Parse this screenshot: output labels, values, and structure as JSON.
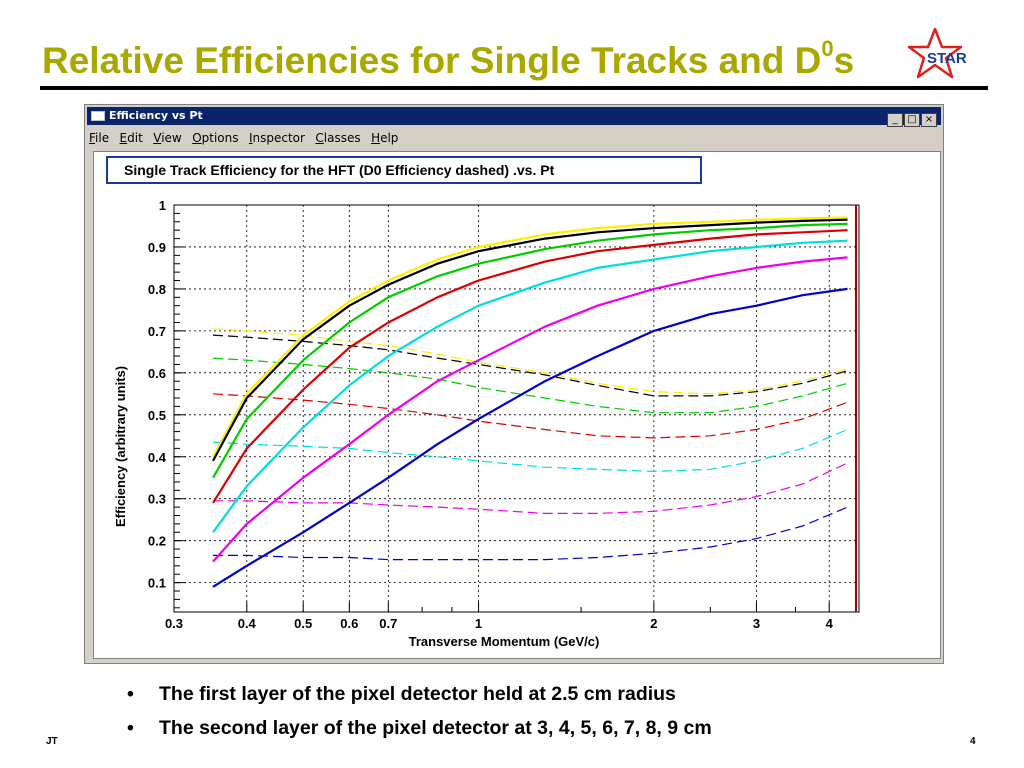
{
  "slide": {
    "title": "Relative Efficiencies for Single Tracks and D",
    "title_sup": "0",
    "title_suffix": "s",
    "logo_text": "STAR",
    "footer_left": "JT",
    "page_number": "4",
    "bullets": [
      "The first layer of the pixel detector held at 2.5 cm radius",
      "The second layer of the pixel detector at 3, 4, 5, 6, 7, 8, 9 cm"
    ],
    "colors": {
      "title": "#a8a800",
      "logo_star": "#e02020",
      "logo_text": "#1a3a9a"
    }
  },
  "window": {
    "title": "Efficiency vs Pt",
    "buttons": {
      "minimize": "_",
      "maximize": "□",
      "close": "×"
    },
    "menu": [
      "File",
      "Edit",
      "View",
      "Options",
      "Inspector",
      "Classes",
      "Help"
    ]
  },
  "chart_data": {
    "type": "line",
    "title": "Single Track Efficiency for the HFT (D0 Efficiency dashed) .vs. Pt",
    "xlabel": "Transverse Momentum (GeV/c)",
    "ylabel": "Efficiency (arbitrary units)",
    "x_scale": "log",
    "xlim": [
      0.3,
      4.5
    ],
    "ylim": [
      0.03,
      1.0
    ],
    "x_ticks": [
      0.3,
      0.4,
      0.5,
      0.6,
      0.7,
      1,
      2,
      3,
      4
    ],
    "x_tick_labels": [
      "0.3",
      "0.4",
      "0.5",
      "0.6",
      "0.7",
      "1",
      "2",
      "3",
      "4"
    ],
    "y_ticks": [
      0.1,
      0.2,
      0.3,
      0.4,
      0.5,
      0.6,
      0.7,
      0.8,
      0.9,
      1
    ],
    "y_tick_labels": [
      "0.1",
      "0.2",
      "0.3",
      "0.4",
      "0.5",
      "0.6",
      "0.7",
      "0.8",
      "0.9",
      "1"
    ],
    "grid": true,
    "x": [
      0.35,
      0.4,
      0.5,
      0.6,
      0.7,
      0.85,
      1.0,
      1.3,
      1.6,
      2.0,
      2.5,
      3.0,
      3.6,
      4.3
    ],
    "series": [
      {
        "color": "#ffee00",
        "style": "solid",
        "values": [
          0.4,
          0.55,
          0.69,
          0.77,
          0.82,
          0.87,
          0.9,
          0.93,
          0.945,
          0.955,
          0.96,
          0.965,
          0.968,
          0.97
        ]
      },
      {
        "color": "#000000",
        "style": "solid",
        "values": [
          0.39,
          0.54,
          0.68,
          0.76,
          0.81,
          0.86,
          0.89,
          0.92,
          0.935,
          0.945,
          0.952,
          0.958,
          0.962,
          0.965
        ]
      },
      {
        "color": "#00cc00",
        "style": "solid",
        "values": [
          0.35,
          0.49,
          0.63,
          0.72,
          0.78,
          0.83,
          0.86,
          0.895,
          0.915,
          0.93,
          0.94,
          0.945,
          0.952,
          0.955
        ]
      },
      {
        "color": "#dd0000",
        "style": "solid",
        "values": [
          0.29,
          0.42,
          0.56,
          0.66,
          0.72,
          0.78,
          0.82,
          0.865,
          0.89,
          0.905,
          0.92,
          0.93,
          0.935,
          0.94
        ]
      },
      {
        "color": "#00dddd",
        "style": "solid",
        "values": [
          0.22,
          0.33,
          0.47,
          0.57,
          0.64,
          0.71,
          0.76,
          0.815,
          0.85,
          0.87,
          0.89,
          0.9,
          0.91,
          0.915
        ]
      },
      {
        "color": "#ee00ee",
        "style": "solid",
        "values": [
          0.15,
          0.24,
          0.35,
          0.43,
          0.5,
          0.58,
          0.63,
          0.71,
          0.76,
          0.8,
          0.83,
          0.85,
          0.865,
          0.875
        ]
      },
      {
        "color": "#0000cc",
        "style": "solid",
        "values": [
          0.09,
          0.14,
          0.22,
          0.29,
          0.35,
          0.43,
          0.49,
          0.58,
          0.64,
          0.7,
          0.74,
          0.76,
          0.785,
          0.8
        ]
      },
      {
        "color": "#ffee00",
        "style": "dashed",
        "values": [
          0.705,
          0.7,
          0.69,
          0.675,
          0.665,
          0.645,
          0.625,
          0.6,
          0.575,
          0.555,
          0.55,
          0.56,
          0.58,
          0.61
        ]
      },
      {
        "color": "#000000",
        "style": "dashed",
        "values": [
          0.69,
          0.685,
          0.675,
          0.665,
          0.655,
          0.635,
          0.62,
          0.595,
          0.57,
          0.545,
          0.545,
          0.555,
          0.575,
          0.605
        ]
      },
      {
        "color": "#00cc00",
        "style": "dashed",
        "values": [
          0.635,
          0.63,
          0.62,
          0.61,
          0.6,
          0.585,
          0.565,
          0.54,
          0.52,
          0.505,
          0.505,
          0.52,
          0.545,
          0.575
        ]
      },
      {
        "color": "#dd0000",
        "style": "dashed",
        "values": [
          0.55,
          0.545,
          0.535,
          0.525,
          0.515,
          0.5,
          0.485,
          0.465,
          0.45,
          0.445,
          0.45,
          0.465,
          0.49,
          0.53
        ]
      },
      {
        "color": "#00dddd",
        "style": "dashed",
        "values": [
          0.435,
          0.43,
          0.425,
          0.42,
          0.41,
          0.4,
          0.39,
          0.375,
          0.37,
          0.365,
          0.37,
          0.39,
          0.42,
          0.465
        ]
      },
      {
        "color": "#ee00ee",
        "style": "dashed",
        "values": [
          0.295,
          0.295,
          0.29,
          0.29,
          0.285,
          0.28,
          0.275,
          0.265,
          0.265,
          0.27,
          0.285,
          0.305,
          0.335,
          0.385
        ]
      },
      {
        "color": "#0000cc",
        "style": "dashed",
        "values": [
          0.165,
          0.165,
          0.16,
          0.16,
          0.155,
          0.155,
          0.155,
          0.155,
          0.16,
          0.17,
          0.185,
          0.205,
          0.235,
          0.28
        ]
      }
    ]
  }
}
